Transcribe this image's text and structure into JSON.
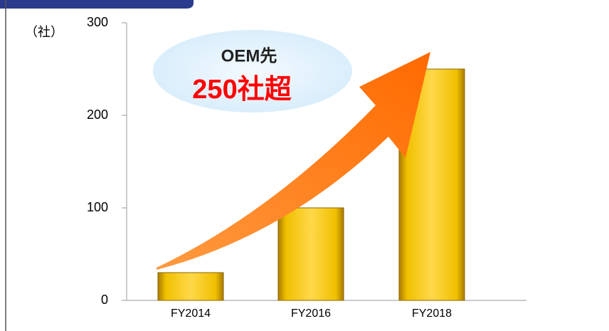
{
  "chart_data": {
    "type": "bar",
    "y_axis_label": "（社）",
    "categories": [
      "FY2014",
      "FY2016",
      "FY2018"
    ],
    "values": [
      30,
      100,
      250
    ],
    "color": "#f5c400",
    "ylim": [
      0,
      300
    ],
    "yticks": [
      0,
      100,
      200,
      300
    ],
    "annotations": [
      "OEM先",
      "250社超"
    ]
  }
}
